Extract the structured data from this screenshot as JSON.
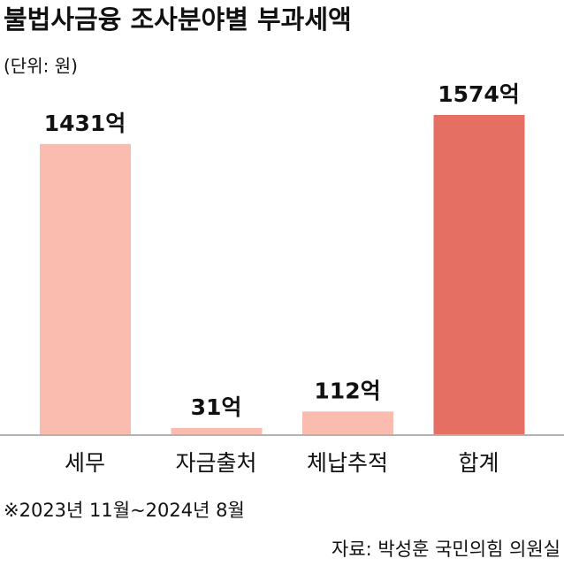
{
  "chart_data": {
    "type": "bar",
    "title": "불법사금융 조사분야별 부과세액",
    "subtitle": "(단위: 원)",
    "categories": [
      "세무",
      "자금출처",
      "체납추적",
      "합계"
    ],
    "values": [
      1431,
      31,
      112,
      1574
    ],
    "value_labels": [
      "1431억",
      "31억",
      "112억",
      "1574억"
    ],
    "colors": [
      "#f9bcae",
      "#f9bcae",
      "#f9bcae",
      "#e56f63"
    ],
    "note": "※2023년 11월~2024년 8월",
    "source": "자료: 박성훈 국민의힘 의원실"
  }
}
